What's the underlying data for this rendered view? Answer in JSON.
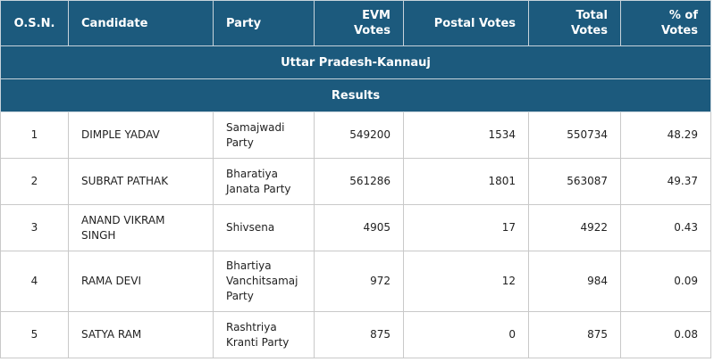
{
  "title": "Uttar Pradesh-Kannauj",
  "subtitle": "Results",
  "headers": [
    "O.S.N.",
    "Candidate",
    "Party",
    "EVM\nVotes",
    "Postal Votes",
    "Total\nVotes",
    "% of\nVotes"
  ],
  "rows": [
    {
      "osn": "1",
      "candidate": "DIMPLE YADAV",
      "party": "Samajwadi Party",
      "evm": "549200",
      "postal": "1534",
      "total": "550734",
      "pct": "48.29"
    },
    {
      "osn": "2",
      "candidate": "SUBRAT PATHAK",
      "party": "Bharatiya Janata Party",
      "evm": "561286",
      "postal": "1801",
      "total": "563087",
      "pct": "49.37"
    },
    {
      "osn": "3",
      "candidate": "ANAND VIKRAM SINGH",
      "party": "Shivsena",
      "evm": "4905",
      "postal": "17",
      "total": "4922",
      "pct": "0.43"
    },
    {
      "osn": "4",
      "candidate": "RAMA DEVI",
      "party": "Bhartiya Vanchitsamaj Party",
      "evm": "972",
      "postal": "12",
      "total": "984",
      "pct": "0.09"
    },
    {
      "osn": "5",
      "candidate": "SATYA RAM",
      "party": "Rashtriya Kranti Party",
      "evm": "875",
      "postal": "0",
      "total": "875",
      "pct": "0.08"
    }
  ],
  "colors": {
    "header_bg": "#1c5a7d",
    "header_text": "#ffffff"
  }
}
